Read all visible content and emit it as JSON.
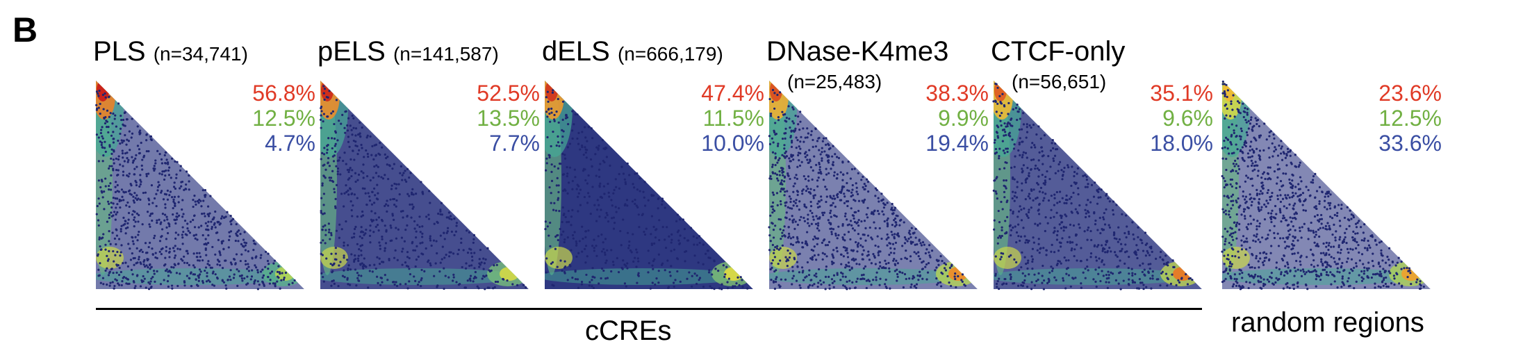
{
  "figure": {
    "panel_letter": "B",
    "group_label": "cCREs",
    "random_label": "random regions"
  },
  "chart_data": {
    "type": "heatmap",
    "description_note": "Six triangular density scatter plots with three percentages each",
    "panels": [
      {
        "name": "PLS",
        "count": "(n=34,741)",
        "pct_red": "56.8%",
        "pct_green": "12.5%",
        "pct_blue": "4.7%",
        "hotspots": {
          "top_left": 1.0,
          "bottom_right": 0.25
        },
        "density": 0.55
      },
      {
        "name": "pELS",
        "count": "(n=141,587)",
        "pct_red": "52.5%",
        "pct_green": "13.5%",
        "pct_blue": "7.7%",
        "hotspots": {
          "top_left": 0.95,
          "bottom_right": 0.4
        },
        "density": 0.85
      },
      {
        "name": "dELS",
        "count": "(n=666,179)",
        "pct_red": "47.4%",
        "pct_green": "11.5%",
        "pct_blue": "10.0%",
        "hotspots": {
          "top_left": 0.9,
          "bottom_right": 0.45
        },
        "density": 1.0
      },
      {
        "name": "DNase-K4me3",
        "count": "(n=25,483)",
        "pct_red": "38.3%",
        "pct_green": "9.9%",
        "pct_blue": "19.4%",
        "hotspots": {
          "top_left": 0.8,
          "bottom_right": 0.75
        },
        "density": 0.5
      },
      {
        "name": "CTCF-only",
        "count": "(n=56,651)",
        "pct_red": "35.1%",
        "pct_green": "9.6%",
        "pct_blue": "18.0%",
        "hotspots": {
          "top_left": 0.75,
          "bottom_right": 0.8
        },
        "density": 0.75
      },
      {
        "name": "",
        "count": "",
        "pct_red": "23.6%",
        "pct_green": "12.5%",
        "pct_blue": "33.6%",
        "hotspots": {
          "top_left": 0.35,
          "bottom_right": 0.7
        },
        "density": 0.45
      }
    ],
    "colors": {
      "red": "#e03a26",
      "green": "#71b043",
      "blue": "#3a4ea3"
    }
  }
}
